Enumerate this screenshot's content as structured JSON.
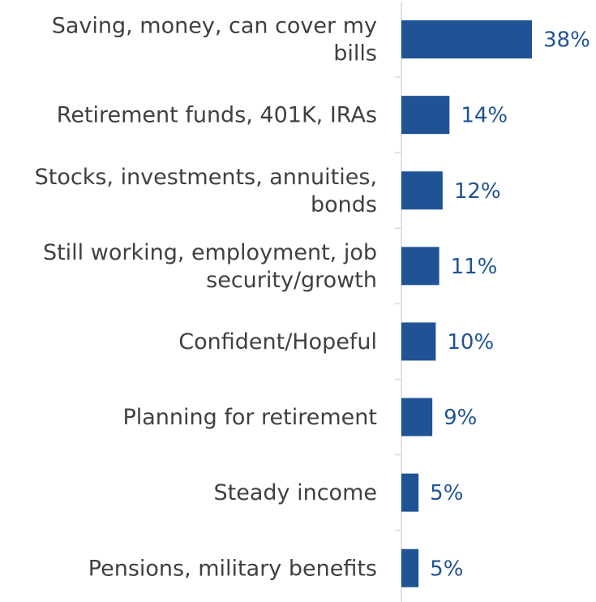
{
  "chart_data": {
    "type": "bar",
    "orientation": "horizontal",
    "categories": [
      "Saving, money, can cover my bills",
      "Retirement funds, 401K, IRAs",
      "Stocks, investments, annuities, bonds",
      "Still working, employment, job security/growth",
      "Confident/Hopeful",
      "Planning for retirement",
      "Steady income",
      "Pensions, military benefits"
    ],
    "category_label_lines": [
      [
        "Saving, money, can cover my",
        "bills"
      ],
      [
        "Retirement funds, 401K, IRAs"
      ],
      [
        "Stocks, investments, annuities,",
        "bonds"
      ],
      [
        "Still working, employment, job",
        "security/growth"
      ],
      [
        "Confident/Hopeful"
      ],
      [
        "Planning for retirement"
      ],
      [
        "Steady income"
      ],
      [
        "Pensions, military benefits"
      ]
    ],
    "values": [
      38,
      14,
      12,
      11,
      10,
      9,
      5,
      5
    ],
    "data_labels": [
      "38%",
      "14%",
      "12%",
      "11%",
      "10%",
      "9%",
      "5%",
      "5%"
    ],
    "unit": "%",
    "xlim": [
      0,
      40
    ],
    "grid": false,
    "legend": "none",
    "title": "",
    "xlabel": "",
    "ylabel": "",
    "colors": {
      "bar": "#1F5396",
      "value_label": "#1F5396",
      "category_label": "#404040",
      "axis": "#D9D9D9"
    }
  }
}
